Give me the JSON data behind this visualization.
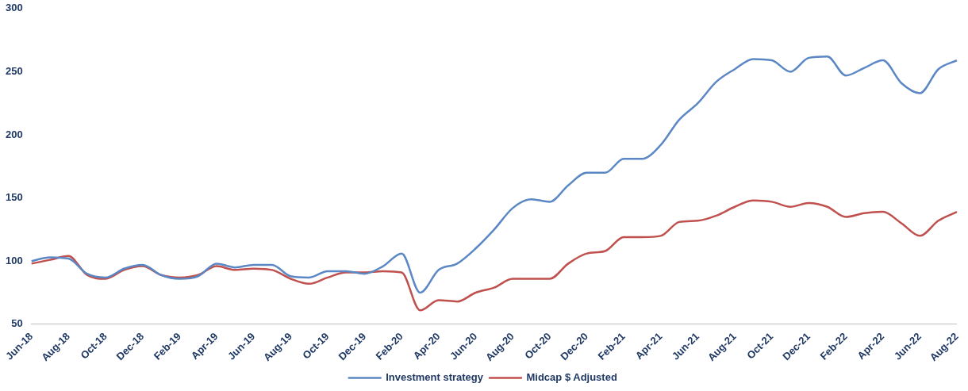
{
  "chart_data": {
    "type": "line",
    "categories": [
      "Jun-18",
      null,
      "Aug-18",
      null,
      "Oct-18",
      null,
      "Dec-18",
      null,
      "Feb-19",
      null,
      "Apr-19",
      null,
      "Jun-19",
      null,
      "Aug-19",
      null,
      "Oct-19",
      null,
      "Dec-19",
      null,
      "Feb-20",
      null,
      "Apr-20",
      null,
      "Jun-20",
      null,
      "Aug-20",
      null,
      "Oct-20",
      null,
      "Dec-20",
      null,
      "Feb-21",
      null,
      "Apr-21",
      null,
      "Jun-21",
      null,
      "Aug-21",
      null,
      "Oct-21",
      null,
      "Dec-21",
      null,
      "Feb-22",
      null,
      "Apr-22",
      null,
      "Jun-22",
      null,
      "Aug-22"
    ],
    "series": [
      {
        "name": "Investment strategy",
        "color": "#5b87c5",
        "values": [
          100,
          103,
          102,
          90,
          87,
          94,
          97,
          89,
          86,
          88,
          98,
          95,
          97,
          97,
          88,
          87,
          92,
          92,
          90,
          96,
          106,
          75,
          93,
          98,
          110,
          125,
          142,
          149,
          147,
          160,
          170,
          170,
          181,
          181,
          192,
          212,
          225,
          242,
          252,
          260,
          259,
          250,
          261,
          262,
          247,
          253,
          259,
          241,
          233,
          252,
          259
        ]
      },
      {
        "name": "Midcap $ Adjusted",
        "color": "#c0504d",
        "values": [
          98,
          101,
          104,
          89,
          86,
          93,
          96,
          89,
          87,
          89,
          96,
          93,
          94,
          93,
          86,
          82,
          87,
          91,
          91,
          92,
          91,
          61,
          69,
          68,
          75,
          79,
          86,
          86,
          86,
          98,
          106,
          108,
          119,
          119,
          120,
          131,
          132,
          136,
          143,
          148,
          147,
          143,
          146,
          143,
          135,
          138,
          139,
          130,
          120,
          132,
          139
        ]
      }
    ],
    "ylim": [
      50,
      300
    ],
    "yticks": [
      50,
      100,
      150,
      200,
      250,
      300
    ],
    "grid": false,
    "legend": "bottom",
    "marker": "none",
    "line_style": "solid"
  }
}
